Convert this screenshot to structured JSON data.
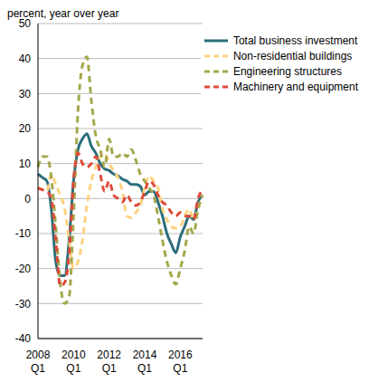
{
  "chart_data": {
    "type": "line",
    "y_label": "percent, year over year",
    "categories": [
      "2008 Q1",
      null,
      null,
      null,
      null,
      null,
      null,
      null,
      "2010 Q1",
      null,
      null,
      null,
      null,
      null,
      null,
      null,
      "2012 Q1",
      null,
      null,
      null,
      null,
      null,
      null,
      null,
      "2014 Q1",
      null,
      null,
      null,
      null,
      null,
      null,
      null,
      "2016 Q1",
      null,
      null,
      null,
      null,
      null
    ],
    "series": [
      {
        "name": "Total business investment",
        "color": "#2b6d7a",
        "line_style": "solid",
        "values": [
          7,
          6,
          5,
          -3,
          -18,
          -22,
          -22,
          -12,
          5,
          14,
          17,
          18.5,
          15,
          13,
          10,
          8.5,
          8,
          7,
          6.5,
          5.5,
          5,
          4,
          4,
          3.5,
          1,
          2,
          2,
          -1,
          -5,
          -10,
          -13,
          -15.5,
          -11,
          -8,
          -5,
          -6,
          -1,
          1
        ]
      },
      {
        "name": "Non-residential buildings",
        "color": "#ffd27f",
        "line_style": "dashed",
        "values": [
          3,
          2.5,
          2,
          7,
          4,
          1,
          -3,
          -12,
          -20,
          -18,
          -12,
          -2,
          5,
          9,
          12,
          13,
          10,
          8,
          6,
          2,
          -5,
          -5.5,
          -4,
          -2,
          3,
          6.5,
          5,
          3,
          -3,
          -6,
          -8,
          -8.5,
          -8,
          -5,
          -3,
          -6,
          -3,
          1
        ]
      },
      {
        "name": "Engineering structures",
        "color": "#a3a84a",
        "line_style": "dashed",
        "values": [
          9,
          12,
          12,
          6,
          -8,
          -24,
          -30,
          -28,
          -5,
          25,
          38,
          40.5,
          28,
          18,
          14,
          9,
          17,
          12,
          12,
          13,
          12,
          14,
          11,
          7,
          5,
          3,
          1,
          -5,
          -12,
          -18,
          -22,
          -24.5,
          -20,
          -15,
          -8,
          -10,
          -3,
          1
        ]
      },
      {
        "name": "Machinery and equipment",
        "color": "#e04a3a",
        "line_style": "dashed",
        "values": [
          3,
          2.5,
          2,
          0,
          -12,
          -25,
          -24,
          -16,
          5,
          13,
          10,
          9,
          10,
          12,
          7,
          2,
          5,
          1,
          0,
          -1,
          1,
          -1,
          -2,
          -1,
          2,
          5,
          4,
          1,
          -1,
          -2,
          -4,
          -5,
          -4,
          -5,
          -5,
          -6,
          0,
          2.5
        ]
      }
    ],
    "ylim": [
      -40,
      50
    ],
    "yticks": [
      -40,
      -30,
      -20,
      -10,
      0,
      10,
      20,
      30,
      40,
      50
    ],
    "grid": true,
    "legend": "upper right"
  }
}
